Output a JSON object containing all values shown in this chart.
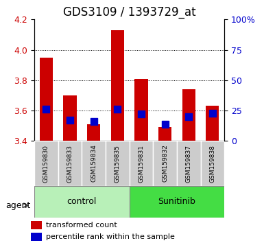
{
  "title": "GDS3109 / 1393729_at",
  "samples": [
    "GSM159830",
    "GSM159833",
    "GSM159834",
    "GSM159835",
    "GSM159831",
    "GSM159832",
    "GSM159837",
    "GSM159838"
  ],
  "red_values": [
    3.95,
    3.7,
    3.51,
    4.13,
    3.81,
    3.49,
    3.74,
    3.63
  ],
  "blue_values": [
    26,
    17,
    16,
    26,
    22,
    14,
    20,
    23
  ],
  "ylim_left": [
    3.4,
    4.2
  ],
  "ylim_right": [
    0,
    100
  ],
  "yticks_left": [
    3.4,
    3.6,
    3.8,
    4.0,
    4.2
  ],
  "yticks_right": [
    0,
    25,
    50,
    75,
    100
  ],
  "ytick_labels_right": [
    "0",
    "25",
    "50",
    "75",
    "100%"
  ],
  "groups": [
    {
      "label": "control",
      "indices": [
        0,
        1,
        2,
        3
      ],
      "color": "#b8f0b8"
    },
    {
      "label": "Sunitinib",
      "indices": [
        4,
        5,
        6,
        7
      ],
      "color": "#44dd44"
    }
  ],
  "group_label": "agent",
  "bar_color": "#cc0000",
  "dot_color": "#0000cc",
  "bar_width": 0.55,
  "dot_size": 55,
  "title_fontsize": 12,
  "tick_fontsize": 9,
  "legend_fontsize": 8
}
